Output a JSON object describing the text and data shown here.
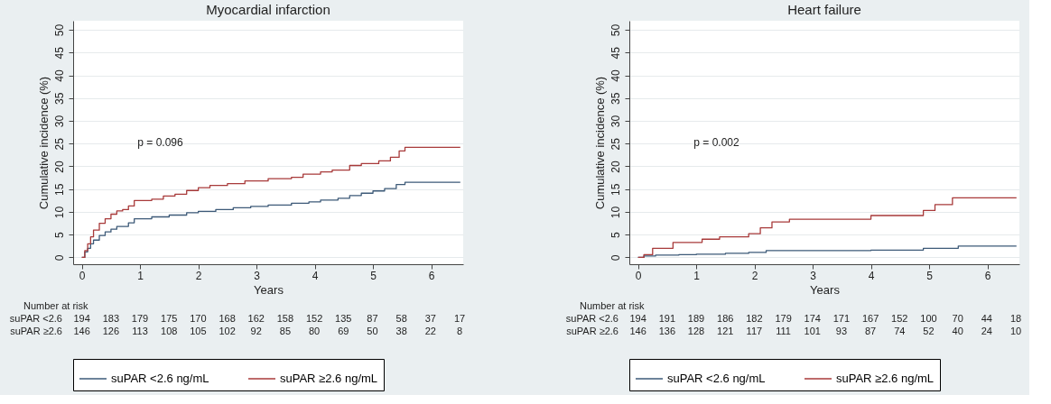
{
  "chart_data": [
    {
      "type": "step",
      "title": "Myocardial infarction",
      "xlabel": "Years",
      "ylabel": "Cumulative incidence (%)",
      "xlim": [
        -0.15,
        6.55
      ],
      "xticks": [
        0,
        1,
        2,
        3,
        4,
        5,
        6
      ],
      "ylim": [
        -1.5,
        52
      ],
      "yticks": [
        0,
        5,
        10,
        15,
        20,
        25,
        30,
        35,
        40,
        45,
        50
      ],
      "grid": "y",
      "legend": "bottom",
      "series": [
        {
          "name": "suPAR <2.6 ng/mL",
          "color": "#3d5a78",
          "x": [
            0,
            0.05,
            0.1,
            0.15,
            0.2,
            0.3,
            0.4,
            0.5,
            0.6,
            0.8,
            0.9,
            1.2,
            1.5,
            1.8,
            2.0,
            2.3,
            2.6,
            2.9,
            3.2,
            3.6,
            3.9,
            4.1,
            4.4,
            4.6,
            4.8,
            5.0,
            5.2,
            5.4,
            5.55,
            6.5
          ],
          "values": [
            0,
            1.2,
            2.0,
            3.0,
            3.8,
            4.8,
            5.6,
            6.2,
            6.8,
            7.6,
            8.5,
            8.9,
            9.3,
            9.8,
            10.1,
            10.5,
            10.9,
            11.2,
            11.5,
            11.9,
            12.2,
            12.6,
            13.0,
            13.6,
            14.1,
            14.6,
            15.1,
            16.0,
            16.5,
            16.5
          ]
        },
        {
          "name": "suPAR ≥2.6 ng/mL",
          "color": "#a83a3a",
          "x": [
            0,
            0.05,
            0.1,
            0.15,
            0.2,
            0.3,
            0.4,
            0.5,
            0.6,
            0.7,
            0.8,
            0.9,
            1.2,
            1.4,
            1.6,
            1.8,
            2.0,
            2.2,
            2.5,
            2.8,
            3.2,
            3.6,
            3.8,
            4.1,
            4.3,
            4.6,
            4.8,
            5.1,
            5.3,
            5.45,
            5.55,
            6.5
          ],
          "values": [
            0,
            1.5,
            3.0,
            4.5,
            6.0,
            7.5,
            8.5,
            9.5,
            10.2,
            10.5,
            11.3,
            12.5,
            12.8,
            13.5,
            13.9,
            14.7,
            15.3,
            15.8,
            16.2,
            16.8,
            17.3,
            17.6,
            18.3,
            18.8,
            19.2,
            20.2,
            20.6,
            21.2,
            22.0,
            23.4,
            24.2,
            24.2
          ]
        }
      ],
      "annotations": [
        "p = 0.096",
        "Number at risk",
        "suPAR <2.6",
        "194",
        "183",
        "179",
        "175",
        "170",
        "168",
        "162",
        "158",
        "152",
        "135",
        "87",
        "58",
        "37",
        "17",
        "suPAR ≥2.6",
        "146",
        "126",
        "113",
        "108",
        "105",
        "102",
        "92",
        "85",
        "80",
        "69",
        "50",
        "38",
        "22",
        "8"
      ]
    },
    {
      "type": "step",
      "title": "Heart failure",
      "xlabel": "Years",
      "ylabel": "Cumulative incidence (%)",
      "xlim": [
        -0.15,
        6.55
      ],
      "xticks": [
        0,
        1,
        2,
        3,
        4,
        5,
        6
      ],
      "ylim": [
        -1.5,
        52
      ],
      "yticks": [
        0,
        5,
        10,
        15,
        20,
        25,
        30,
        35,
        40,
        45,
        50
      ],
      "grid": "y",
      "legend": "bottom",
      "series": [
        {
          "name": "suPAR <2.6 ng/mL",
          "color": "#3d5a78",
          "x": [
            0,
            0.1,
            0.3,
            0.7,
            1.0,
            1.5,
            1.9,
            2.2,
            3.0,
            4.0,
            4.9,
            5.5,
            6.5
          ],
          "values": [
            0,
            0.3,
            0.5,
            0.6,
            0.7,
            0.9,
            1.1,
            1.5,
            1.5,
            1.6,
            2.0,
            2.5,
            2.5
          ]
        },
        {
          "name": "suPAR ≥2.6 ng/mL",
          "color": "#a83a3a",
          "x": [
            0,
            0.1,
            0.25,
            0.6,
            1.1,
            1.4,
            1.9,
            2.1,
            2.3,
            2.6,
            3.9,
            4.0,
            4.9,
            5.1,
            5.4,
            6.5
          ],
          "values": [
            0,
            0.6,
            2.0,
            3.3,
            4.0,
            4.5,
            5.2,
            6.5,
            7.8,
            8.4,
            8.4,
            9.2,
            10.3,
            11.6,
            13.1,
            13.1
          ]
        }
      ],
      "annotations": [
        "p = 0.002",
        "Number at risk",
        "suPAR <2.6",
        "194",
        "191",
        "189",
        "186",
        "182",
        "179",
        "174",
        "171",
        "167",
        "152",
        "100",
        "70",
        "44",
        "18",
        "suPAR ≥2.6",
        "146",
        "136",
        "128",
        "121",
        "117",
        "111",
        "101",
        "93",
        "87",
        "74",
        "52",
        "40",
        "24",
        "10"
      ]
    }
  ]
}
